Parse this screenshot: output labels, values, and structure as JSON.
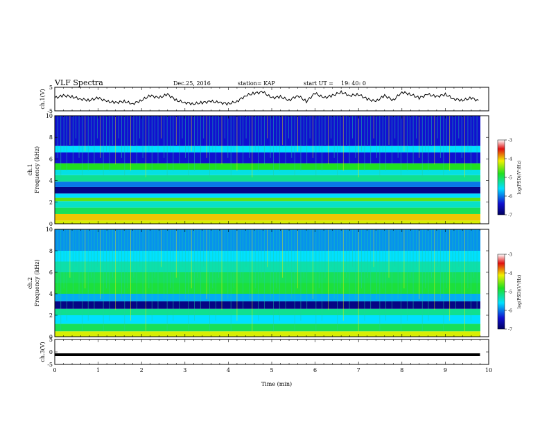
{
  "header": {
    "title": "VLF Spectra",
    "date": "Dec.25, 2016",
    "station": "station= KAP",
    "start": "start  UT =",
    "start_time": "19: 40: 0"
  },
  "colors": {
    "spectrogram_low": "#1a1aa0",
    "spectrogram_mid": "#00d8ff",
    "spectrogram_high": "#e01010",
    "trace": "#000000"
  },
  "chart_data": [
    {
      "type": "line",
      "name": "ch1-waveform",
      "ylabel": "ch.1(V)",
      "ylim": [
        -5,
        5
      ],
      "yticks": [
        "5",
        "-5"
      ],
      "xlim": [
        0,
        10
      ],
      "x": [
        0,
        0.2,
        0.4,
        0.6,
        0.8,
        1.0,
        1.2,
        1.4,
        1.6,
        1.8,
        2.0,
        2.2,
        2.4,
        2.6,
        2.8,
        3.0,
        3.2,
        3.4,
        3.6,
        3.8,
        4.0,
        4.2,
        4.4,
        4.6,
        4.8,
        5.0,
        5.2,
        5.4,
        5.6,
        5.8,
        6.0,
        6.2,
        6.4,
        6.6,
        6.8,
        7.0,
        7.2,
        7.4,
        7.6,
        7.8,
        8.0,
        8.2,
        8.4,
        8.6,
        8.8,
        9.0,
        9.2,
        9.4,
        9.6,
        9.8
      ],
      "y": [
        0.5,
        1.5,
        1.0,
        0.0,
        -0.5,
        0.5,
        -1.0,
        -1.5,
        -1.0,
        -2.0,
        -0.5,
        1.5,
        0.5,
        2.0,
        -0.5,
        -1.5,
        -2.0,
        -1.5,
        -1.0,
        -1.5,
        -2.0,
        -1.0,
        1.5,
        2.5,
        3.0,
        0.5,
        1.0,
        -0.5,
        1.5,
        -1.0,
        2.5,
        0.5,
        1.5,
        3.0,
        1.5,
        2.0,
        0.0,
        -1.0,
        1.5,
        -0.5,
        3.0,
        2.0,
        0.5,
        2.0,
        1.0,
        2.0,
        0.0,
        -0.5,
        0.5,
        -1.0
      ]
    },
    {
      "type": "heatmap",
      "name": "ch1-spectrogram",
      "ylabel": "ch.1",
      "ylabel2": "Frequency  (kHz)",
      "ylim": [
        0,
        10
      ],
      "yticks": [
        "0",
        "2",
        "4",
        "6",
        "8",
        "10"
      ],
      "xlim": [
        0,
        10
      ],
      "colorbar": {
        "label": "log(PSD)(V²/Hz)",
        "range": [
          -7,
          -3
        ],
        "ticks": [
          "-3",
          "-4",
          "-5",
          "-6",
          "-7"
        ]
      },
      "bands": [
        {
          "from": 0.0,
          "to": 0.3,
          "level": -4.2
        },
        {
          "from": 0.3,
          "to": 0.9,
          "level": -4.0
        },
        {
          "from": 0.9,
          "to": 1.5,
          "level": -5.0
        },
        {
          "from": 1.5,
          "to": 2.1,
          "level": -5.4
        },
        {
          "from": 2.1,
          "to": 2.4,
          "level": -4.6
        },
        {
          "from": 2.4,
          "to": 2.8,
          "level": -5.6
        },
        {
          "from": 2.8,
          "to": 3.4,
          "level": -6.8
        },
        {
          "from": 3.4,
          "to": 3.9,
          "level": -6.0
        },
        {
          "from": 3.9,
          "to": 4.5,
          "level": -5.2
        },
        {
          "from": 4.5,
          "to": 5.0,
          "level": -5.5
        },
        {
          "from": 5.0,
          "to": 5.6,
          "level": -4.8
        },
        {
          "from": 5.6,
          "to": 6.6,
          "level": -6.4
        },
        {
          "from": 6.6,
          "to": 7.2,
          "level": -5.6
        },
        {
          "from": 7.2,
          "to": 10.0,
          "level": -6.4
        }
      ]
    },
    {
      "type": "heatmap",
      "name": "ch2-spectrogram",
      "ylabel": "ch.2",
      "ylabel2": "Frequency  (kHz)",
      "ylim": [
        0,
        10
      ],
      "yticks": [
        "0",
        "2",
        "4",
        "6",
        "8",
        "10"
      ],
      "xlim": [
        0,
        10
      ],
      "colorbar": {
        "label": "log(PSD)(V²/Hz)",
        "range": [
          -7,
          -3
        ],
        "ticks": [
          "-3",
          "-4",
          "-5",
          "-6",
          "-7"
        ]
      },
      "bands": [
        {
          "from": 0.0,
          "to": 0.5,
          "level": -4.2
        },
        {
          "from": 0.5,
          "to": 1.2,
          "level": -5.0
        },
        {
          "from": 1.2,
          "to": 2.0,
          "level": -5.6
        },
        {
          "from": 2.0,
          "to": 2.6,
          "level": -5.2
        },
        {
          "from": 2.6,
          "to": 3.3,
          "level": -6.8
        },
        {
          "from": 3.3,
          "to": 4.0,
          "level": -5.8
        },
        {
          "from": 4.0,
          "to": 5.0,
          "level": -4.9
        },
        {
          "from": 5.0,
          "to": 6.0,
          "level": -5.0
        },
        {
          "from": 6.0,
          "to": 7.0,
          "level": -5.3
        },
        {
          "from": 7.0,
          "to": 8.0,
          "level": -5.6
        },
        {
          "from": 8.0,
          "to": 10.0,
          "level": -5.9
        }
      ]
    },
    {
      "type": "line",
      "name": "ch3-waveform",
      "ylabel": "ch.3(V)",
      "ylim": [
        -5,
        5
      ],
      "yticks": [
        "5",
        "0",
        "-5"
      ],
      "xlim": [
        0,
        10
      ],
      "x": [
        0,
        9.8
      ],
      "y": [
        0,
        0
      ]
    }
  ],
  "xaxis": {
    "label": "Time  (min)",
    "ticks": [
      "0",
      "1",
      "2",
      "3",
      "4",
      "5",
      "6",
      "7",
      "8",
      "9",
      "10"
    ]
  }
}
